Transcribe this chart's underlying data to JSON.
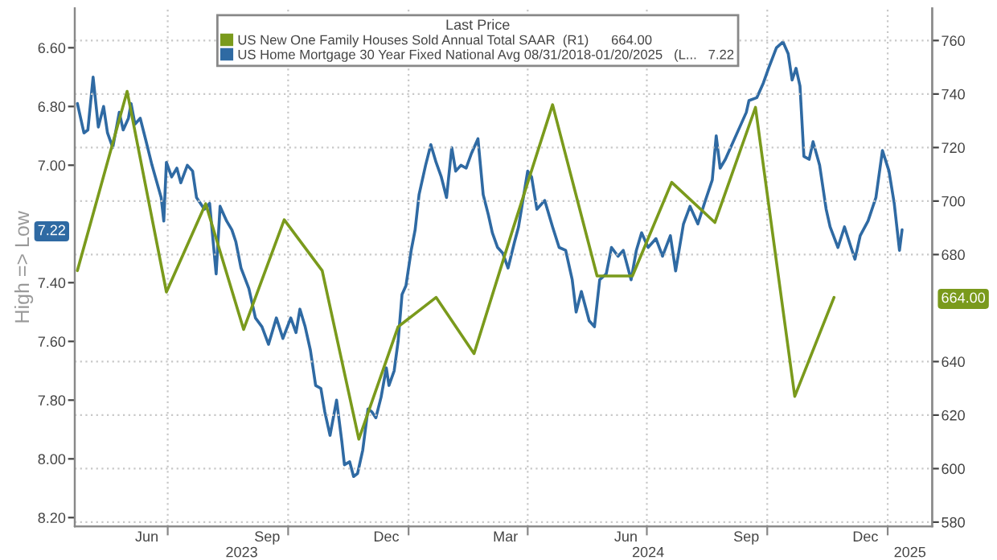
{
  "chart_data": {
    "type": "line",
    "legend_title": "Last Price",
    "ylabel": "High => Low",
    "series": [
      {
        "name": "US New One Family Houses Sold Annual Total SAAR  (R1)      664.00",
        "color": "#7a9a1c",
        "axis": "y2",
        "x": [
          "2023-04-23",
          "2023-05-31",
          "2023-06-30",
          "2023-07-30",
          "2023-08-28",
          "2023-09-28",
          "2023-10-27",
          "2023-11-24",
          "2023-12-24",
          "2024-01-22",
          "2024-02-20",
          "2024-03-21",
          "2024-04-20",
          "2024-05-24",
          "2024-06-20",
          "2024-07-20",
          "2024-08-22",
          "2024-09-22",
          "2024-10-22",
          "2024-11-21"
        ],
        "values": [
          674,
          741,
          666,
          699,
          652,
          693,
          674,
          611,
          653,
          664,
          643,
          690,
          736,
          672,
          672,
          707,
          692,
          735,
          627,
          664
        ]
      },
      {
        "name": "US Home Mortgage 30 Year Fixed National Avg 08/31/2018-01/20/2025   (L...   7.22",
        "color": "#2f6aa3",
        "x": [
          "2023-04-23",
          "2023-04-28",
          "2023-05-01",
          "2023-05-05",
          "2023-05-09",
          "2023-05-13",
          "2023-05-16",
          "2023-05-20",
          "2023-05-25",
          "2023-05-28",
          "2023-06-01",
          "2023-06-03",
          "2023-06-06",
          "2023-06-10",
          "2023-06-14",
          "2023-06-19",
          "2023-06-26",
          "2023-06-28",
          "2023-06-30",
          "2023-07-04",
          "2023-07-08",
          "2023-07-11",
          "2023-07-16",
          "2023-07-20",
          "2023-07-23",
          "2023-07-29",
          "2023-08-02",
          "2023-08-07",
          "2023-08-10",
          "2023-08-15",
          "2023-08-19",
          "2023-08-22",
          "2023-08-26",
          "2023-09-01",
          "2023-09-06",
          "2023-09-11",
          "2023-09-16",
          "2023-09-22",
          "2023-09-27",
          "2023-10-03",
          "2023-10-07",
          "2023-10-10",
          "2023-10-14",
          "2023-10-18",
          "2023-10-22",
          "2023-10-26",
          "2023-10-29",
          "2023-11-02",
          "2023-11-07",
          "2023-11-11",
          "2023-11-13",
          "2023-11-17",
          "2023-11-20",
          "2023-11-23",
          "2023-11-27",
          "2023-12-01",
          "2023-12-04",
          "2023-12-07",
          "2023-12-11",
          "2023-12-15",
          "2023-12-17",
          "2023-12-21",
          "2023-12-24",
          "2023-12-27",
          "2023-12-30",
          "2024-01-03",
          "2024-01-06",
          "2024-01-09",
          "2024-01-14",
          "2024-01-18",
          "2024-01-22",
          "2024-01-26",
          "2024-01-30",
          "2024-02-03",
          "2024-02-06",
          "2024-02-10",
          "2024-02-14",
          "2024-02-18",
          "2024-02-23",
          "2024-02-27",
          "2024-03-02",
          "2024-03-05",
          "2024-03-09",
          "2024-03-13",
          "2024-03-17",
          "2024-03-22",
          "2024-03-25",
          "2024-04-01",
          "2024-04-04",
          "2024-04-08",
          "2024-04-14",
          "2024-04-20",
          "2024-04-25",
          "2024-04-30",
          "2024-05-05",
          "2024-05-08",
          "2024-05-12",
          "2024-05-18",
          "2024-05-22",
          "2024-05-26",
          "2024-05-31",
          "2024-06-04",
          "2024-06-09",
          "2024-06-13",
          "2024-06-19",
          "2024-06-23",
          "2024-06-27",
          "2024-07-02",
          "2024-07-08",
          "2024-07-13",
          "2024-07-19",
          "2024-07-23",
          "2024-07-29",
          "2024-08-03",
          "2024-08-09",
          "2024-08-14",
          "2024-08-20",
          "2024-08-23",
          "2024-08-26",
          "2024-08-30",
          "2024-09-04",
          "2024-09-10",
          "2024-09-15",
          "2024-09-17",
          "2024-09-23",
          "2024-09-28",
          "2024-10-02",
          "2024-10-08",
          "2024-10-13",
          "2024-10-17",
          "2024-10-20",
          "2024-10-23",
          "2024-10-26",
          "2024-10-29",
          "2024-11-02",
          "2024-11-05",
          "2024-11-10",
          "2024-11-15",
          "2024-11-18",
          "2024-11-24",
          "2024-11-29",
          "2024-12-04",
          "2024-12-07",
          "2024-12-11",
          "2024-12-17",
          "2024-12-23",
          "2024-12-28",
          "2025-01-02",
          "2025-01-06",
          "2025-01-10",
          "2025-01-12"
        ],
        "values": [
          6.79,
          6.89,
          6.88,
          6.7,
          6.87,
          6.8,
          6.89,
          6.94,
          6.82,
          6.88,
          6.84,
          6.79,
          6.86,
          6.84,
          6.91,
          7.0,
          7.11,
          7.19,
          6.99,
          7.04,
          7.01,
          7.06,
          7.0,
          7.02,
          7.11,
          7.15,
          7.13,
          7.37,
          7.14,
          7.19,
          7.22,
          7.26,
          7.35,
          7.42,
          7.52,
          7.55,
          7.61,
          7.52,
          7.59,
          7.52,
          7.57,
          7.49,
          7.55,
          7.63,
          7.75,
          7.76,
          7.84,
          7.92,
          7.8,
          7.94,
          8.02,
          8.01,
          8.06,
          8.05,
          7.97,
          7.83,
          7.84,
          7.86,
          7.79,
          7.69,
          7.75,
          7.7,
          7.6,
          7.44,
          7.41,
          7.29,
          7.22,
          7.1,
          7.0,
          6.93,
          6.99,
          7.04,
          7.11,
          6.94,
          7.02,
          7.0,
          7.01,
          6.96,
          6.91,
          7.1,
          7.17,
          7.23,
          7.28,
          7.3,
          7.35,
          7.26,
          7.21,
          7.02,
          7.04,
          7.15,
          7.12,
          7.21,
          7.28,
          7.29,
          7.39,
          7.5,
          7.43,
          7.53,
          7.55,
          7.39,
          7.37,
          7.28,
          7.31,
          7.29,
          7.39,
          7.29,
          7.23,
          7.28,
          7.25,
          7.31,
          7.24,
          7.36,
          7.2,
          7.14,
          7.2,
          7.13,
          7.05,
          6.9,
          7.01,
          6.98,
          6.93,
          6.87,
          6.82,
          6.78,
          6.77,
          6.72,
          6.67,
          6.6,
          6.58,
          6.62,
          6.71,
          6.67,
          6.73,
          6.97,
          6.98,
          6.92,
          7.0,
          7.15,
          7.21,
          7.28,
          7.21,
          7.28,
          7.32,
          7.24,
          7.19,
          7.11,
          6.95,
          7.02,
          7.13,
          7.29,
          7.22
        ]
      }
    ],
    "xlim": [
      "2023-04-21",
      "2025-02-04"
    ],
    "xticks": [
      {
        "value": "2023-06-15",
        "label": "Jun"
      },
      {
        "value": "2023-07-01",
        "label": null
      },
      {
        "value": "2023-09-15",
        "label": "Sep"
      },
      {
        "value": "2023-10-01",
        "label": null
      },
      {
        "value": "2023-12-15",
        "label": "Dec"
      },
      {
        "value": "2024-01-01",
        "label": null
      },
      {
        "value": "2024-03-15",
        "label": "Mar"
      },
      {
        "value": "2024-04-01",
        "label": null
      },
      {
        "value": "2024-06-15",
        "label": "Jun"
      },
      {
        "value": "2024-07-01",
        "label": null
      },
      {
        "value": "2024-09-15",
        "label": "Sep"
      },
      {
        "value": "2024-10-01",
        "label": null
      },
      {
        "value": "2024-12-15",
        "label": "Dec"
      },
      {
        "value": "2025-01-01",
        "label": null
      }
    ],
    "ylim": [
      8.23,
      6.466
    ],
    "yticks": [
      {
        "value": 6.6,
        "label": "6.60"
      },
      {
        "value": 6.8,
        "label": "6.80"
      },
      {
        "value": 7.0,
        "label": "7.00"
      },
      {
        "value": 7.22,
        "label": "7.22"
      },
      {
        "value": 7.4,
        "label": "7.40"
      },
      {
        "value": 7.6,
        "label": "7.60"
      },
      {
        "value": 7.8,
        "label": "7.80"
      },
      {
        "value": 8.0,
        "label": "8.00"
      },
      {
        "value": 8.2,
        "label": "8.20"
      }
    ],
    "y2lim": [
      578.4,
      772
    ],
    "y2ticks": [
      580,
      600,
      620,
      640,
      {
        "value": 664,
        "label": "664.00"
      },
      680,
      700,
      720,
      740,
      760
    ],
    "annotations": [
      "2023",
      "2024",
      "2025"
    ],
    "grid": true,
    "legend": "top"
  }
}
